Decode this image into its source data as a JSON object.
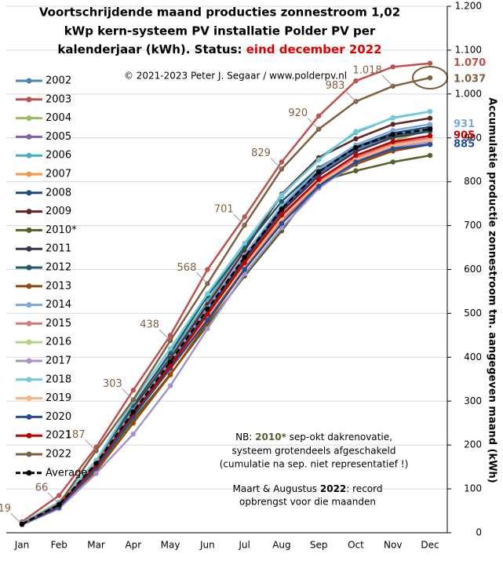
{
  "chart_data": {
    "type": "line",
    "title_lines": [
      "Voortschrijdende maand producties zonnestroom 1,02",
      "kWp kern-systeem PV installatie Polder PV per",
      "kalenderjaar (kWh). Status: "
    ],
    "title_highlight": "eind december 2022",
    "subtitle": "© 2021-2023 Peter J. Segaar / www.polderpv.nl",
    "y_label": "Accumulatie productie zonnestroom tm. aangegeven maand (kWh)",
    "note1": {
      "a": "NB: ",
      "b": "2010*",
      "c": " sep-okt dakrenovatie,",
      "d": "systeem grotendeels afgeschakeld",
      "e": "(cumulatie na sep. niet representatief !)"
    },
    "note2": {
      "a": "Maart & Augustus ",
      "b": "2022",
      "c": ": record",
      "d": "opbrengst voor die maanden"
    },
    "categories": [
      "Jan",
      "Feb",
      "Mar",
      "Apr",
      "May",
      "Jun",
      "Jul",
      "Aug",
      "Sep",
      "Oct",
      "Nov",
      "Dec"
    ],
    "ylim": [
      0,
      1200
    ],
    "yticks": [
      0,
      100,
      200,
      300,
      400,
      500,
      600,
      700,
      800,
      900,
      {
        "value": 1000,
        "label": "1.000"
      },
      {
        "value": 1100,
        "label": "1.100"
      },
      {
        "value": 1200,
        "label": "1.200"
      }
    ],
    "grid": true,
    "series": [
      {
        "name": "2002",
        "color": "#4f81bd",
        "values": [
          20,
          64,
          156,
          276,
          386,
          506,
          626,
          736,
          819,
          874,
          906,
          920
        ]
      },
      {
        "name": "2003",
        "color": "#c0504d",
        "values": [
          25,
          85,
          195,
          325,
          450,
          600,
          720,
          845,
          950,
          1030,
          1062,
          1070
        ],
        "value_labels": [
          null,
          null,
          null,
          null,
          null,
          null,
          null,
          null,
          null,
          null,
          null,
          "1.070"
        ]
      },
      {
        "name": "2004",
        "color": "#9bbb59",
        "values": [
          20,
          60,
          150,
          268,
          380,
          495,
          612,
          722,
          805,
          860,
          893,
          920
        ]
      },
      {
        "name": "2005",
        "color": "#8064a2",
        "values": [
          20,
          62,
          150,
          265,
          375,
          490,
          605,
          712,
          792,
          846,
          877,
          890
        ]
      },
      {
        "name": "2006",
        "color": "#4bacc6",
        "values": [
          21,
          67,
          163,
          288,
          403,
          528,
          653,
          768,
          854,
          912,
          946,
          960
        ]
      },
      {
        "name": "2007",
        "color": "#f79646",
        "values": [
          19,
          62,
          150,
          266,
          372,
          487,
          602,
          708,
          788,
          841,
          872,
          885
        ]
      },
      {
        "name": "2008",
        "color": "#1f497d",
        "values": [
          20,
          65,
          157,
          278,
          389,
          509,
          629,
          740,
          823,
          879,
          911,
          925
        ]
      },
      {
        "name": "2009",
        "color": "#632523",
        "values": [
          21,
          66,
          161,
          284,
          397,
          520,
          643,
          772,
          855,
          898,
          931,
          945
        ]
      },
      {
        "name": "2010*",
        "color": "#4f6228",
        "values": [
          19,
          60,
          146,
          258,
          361,
          473,
          585,
          688,
          800,
          825,
          845,
          860
        ]
      },
      {
        "name": "2011",
        "color": "#3f3151",
        "values": [
          20,
          64,
          156,
          275,
          384,
          503,
          622,
          732,
          814,
          869,
          901,
          915
        ]
      },
      {
        "name": "2012",
        "color": "#215968",
        "values": [
          22,
          70,
          165,
          290,
          410,
          540,
          650,
          755,
          832,
          880,
          905,
          915
        ]
      },
      {
        "name": "2013",
        "color": "#984807",
        "values": [
          18,
          58,
          140,
          250,
          360,
          480,
          600,
          705,
          790,
          840,
          870,
          885
        ]
      },
      {
        "name": "2014",
        "color": "#7da7d8",
        "values": [
          20,
          65,
          158,
          279,
          391,
          512,
          633,
          745,
          829,
          884,
          917,
          931
        ],
        "value_labels": [
          null,
          null,
          null,
          null,
          null,
          null,
          null,
          null,
          null,
          null,
          null,
          "931"
        ]
      },
      {
        "name": "2015",
        "color": "#d9797a",
        "values": [
          20,
          63,
          153,
          270,
          378,
          495,
          612,
          720,
          801,
          855,
          887,
          900
        ]
      },
      {
        "name": "2016",
        "color": "#b3d580",
        "values": [
          20,
          63,
          154,
          272,
          380,
          498,
          615,
          724,
          805,
          860,
          891,
          905
        ]
      },
      {
        "name": "2017",
        "color": "#a893c8",
        "values": [
          18,
          55,
          135,
          225,
          335,
          465,
          590,
          695,
          785,
          845,
          875,
          890
        ]
      },
      {
        "name": "2018",
        "color": "#6ecbd8",
        "values": [
          22,
          70,
          165,
          300,
          420,
          545,
          660,
          770,
          850,
          915,
          945,
          960
        ]
      },
      {
        "name": "2019",
        "color": "#f8b27a",
        "values": [
          20,
          63,
          152,
          269,
          376,
          492,
          609,
          716,
          797,
          850,
          882,
          895
        ]
      },
      {
        "name": "2020",
        "color": "#1f4e9c",
        "values": [
          19,
          58,
          148,
          265,
          375,
          485,
          600,
          705,
          790,
          845,
          875,
          885
        ],
        "value_labels": [
          null,
          null,
          null,
          null,
          null,
          null,
          null,
          null,
          null,
          null,
          null,
          "885"
        ]
      },
      {
        "name": "2021",
        "color": "#c00000",
        "values": [
          20,
          63,
          154,
          272,
          380,
          498,
          615,
          724,
          805,
          860,
          891,
          905
        ],
        "value_labels": [
          null,
          null,
          null,
          null,
          null,
          null,
          null,
          null,
          null,
          null,
          null,
          "905"
        ]
      },
      {
        "name": "2022",
        "color": "#7f5f3f",
        "values": [
          19,
          66,
          187,
          303,
          438,
          568,
          701,
          829,
          920,
          983,
          1018,
          1037
        ],
        "value_labels": [
          "19",
          "66",
          "187",
          "303",
          "438",
          "568",
          "701",
          "829",
          "920",
          "983",
          "1.018",
          "1.037"
        ]
      },
      {
        "name": "Average",
        "color": "#000000",
        "dashed": true,
        "values": [
          20,
          64,
          158,
          276,
          390,
          510,
          628,
          738,
          823,
          878,
          908,
          920
        ]
      }
    ]
  }
}
